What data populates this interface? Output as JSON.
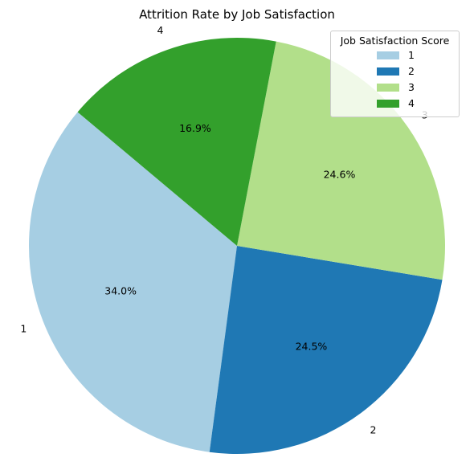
{
  "chart_data": {
    "type": "pie",
    "title": "Attrition Rate by Job Satisfaction",
    "categories": [
      "1",
      "2",
      "3",
      "4"
    ],
    "values": [
      34.0,
      24.5,
      24.6,
      16.9
    ],
    "percent_labels": [
      "34.0%",
      "24.5%",
      "24.6%",
      "16.9%"
    ],
    "colors": [
      "#a6cee3",
      "#1f78b4",
      "#b2df8a",
      "#33a02c"
    ],
    "start_angle_deg": 140,
    "direction": "counterclockwise",
    "legend": {
      "title": "Job Satisfaction Score",
      "placement": "top-right",
      "entries": [
        "1",
        "2",
        "3",
        "4"
      ]
    }
  }
}
